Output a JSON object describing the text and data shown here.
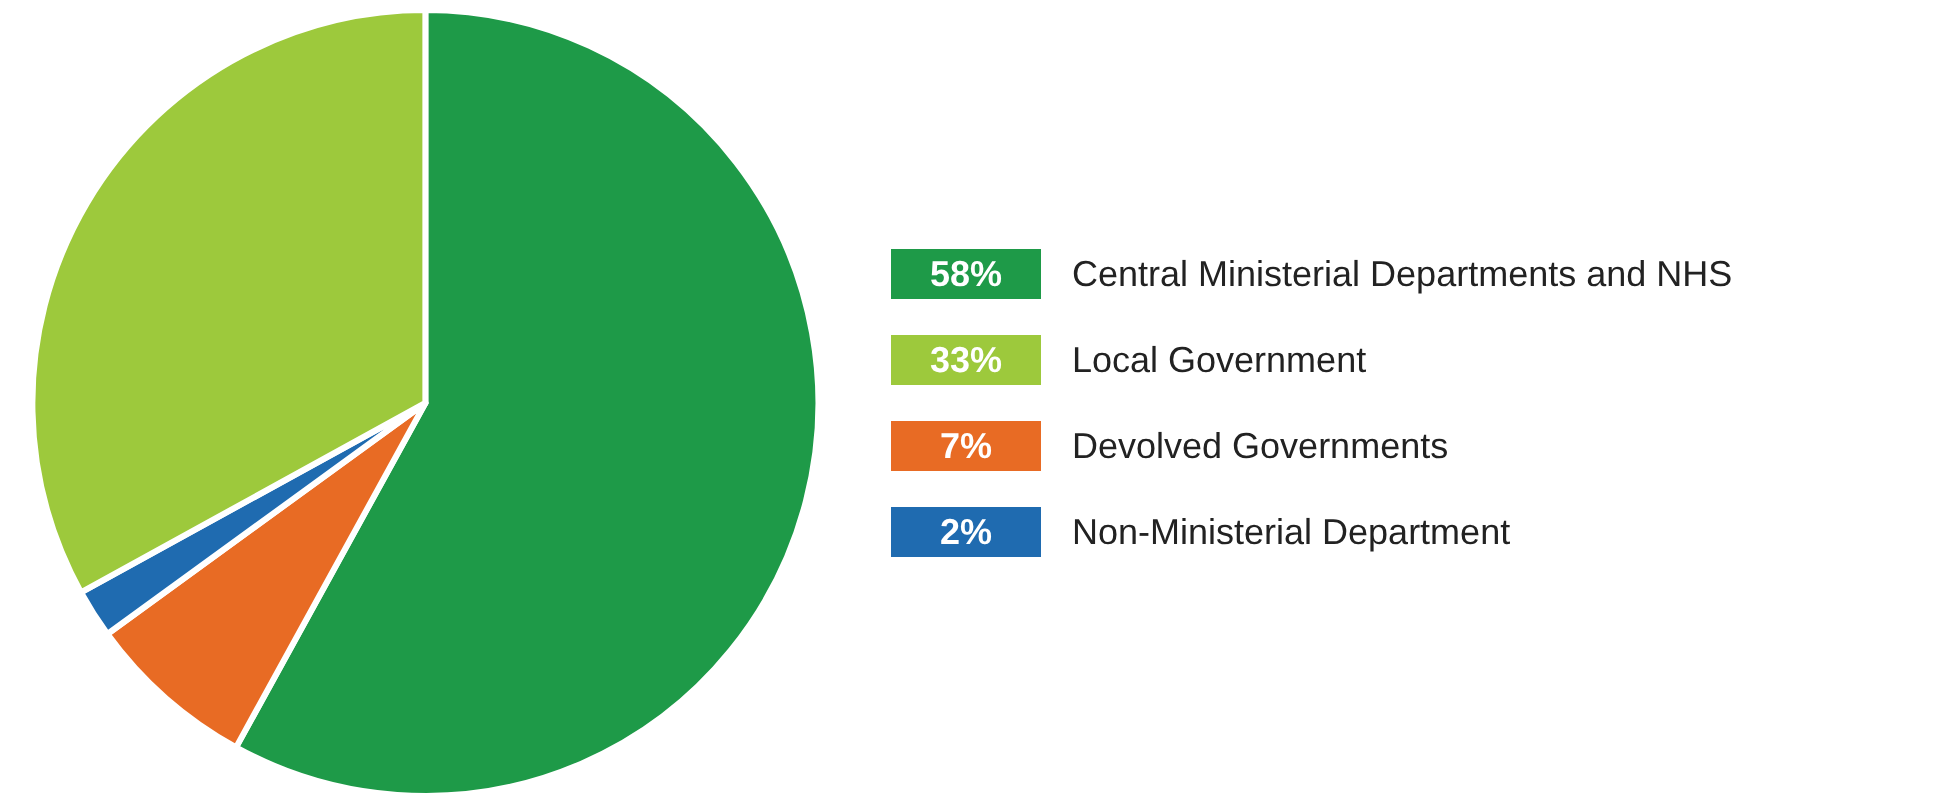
{
  "chart_data": {
    "type": "pie",
    "categories": [
      "Central Ministerial Departments and NHS",
      "Devolved Governments",
      "Non-Ministerial Department",
      "Local Government"
    ],
    "values": [
      58,
      7,
      2,
      33
    ],
    "value_labels": [
      "58%",
      "7%",
      "2%",
      "33%"
    ],
    "colors": [
      "#1e9a48",
      "#e86b24",
      "#1f6bb0",
      "#9dc93c"
    ],
    "legend": "right"
  }
}
